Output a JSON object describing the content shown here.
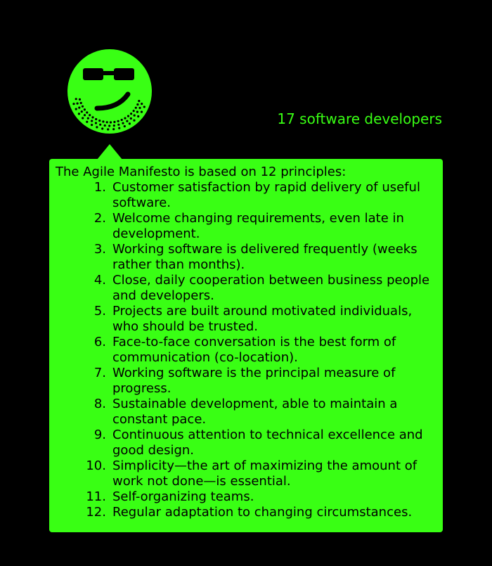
{
  "caption": "17 software developers",
  "intro": "The Agile Manifesto is based on 12 principles:",
  "principles": [
    {
      "num": "1.",
      "text": "Customer satisfaction by rapid delivery of useful software."
    },
    {
      "num": "2.",
      "text": "Welcome changing requirements, even late in development."
    },
    {
      "num": "3.",
      "text": "Working software is delivered frequently (weeks rather than months)."
    },
    {
      "num": "4.",
      "text": "Close, daily cooperation between business people and developers."
    },
    {
      "num": "5.",
      "text": "Projects are built around motivated individuals, who should be trusted."
    },
    {
      "num": "6.",
      "text": "Face-to-face conversation is the best form of communication (co-location)."
    },
    {
      "num": "7.",
      "text": "Working software is the principal measure of progress."
    },
    {
      "num": "8.",
      "text": "Sustainable development, able to maintain a constant pace."
    },
    {
      "num": "9.",
      "text": "Continuous attention to technical excellence and good design."
    },
    {
      "num": "10.",
      "text": "Simplicity—the art of maximizing the amount of work not done—is essential."
    },
    {
      "num": "11.",
      "text": "Self-organizing teams."
    },
    {
      "num": "12.",
      "text": "Regular adaptation to changing circumstances."
    }
  ],
  "colors": {
    "background": "#000000",
    "accent": "#39ff14",
    "text": "#000000"
  },
  "icons": {
    "avatar": "cool-smiley-sunglasses-icon"
  }
}
